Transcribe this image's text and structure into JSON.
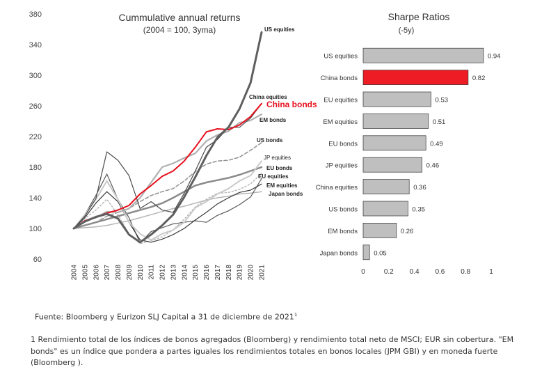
{
  "chart_data": [
    {
      "type": "line",
      "title": "Cummulative annual returns",
      "subtitle": "(2004 = 100, 3yma)",
      "xlabel": "",
      "ylabel": "",
      "ylim": [
        60,
        380
      ],
      "yticks": [
        60,
        100,
        140,
        180,
        220,
        260,
        300,
        340,
        380
      ],
      "x": [
        "2004",
        "2005",
        "2006",
        "2007",
        "2008",
        "2009",
        "2010",
        "2011",
        "2012",
        "2013",
        "2014",
        "2015",
        "2016",
        "2017",
        "2018",
        "2019",
        "2020",
        "2021"
      ],
      "series": [
        {
          "name": "US equities",
          "color": "#5f5f5f",
          "width": 3,
          "dash": "",
          "bold": true,
          "values": [
            100,
            109,
            115,
            119,
            113,
            92,
            82,
            92,
            104,
            118,
            141,
            167,
            195,
            219,
            232,
            256,
            290,
            356
          ]
        },
        {
          "name": "China equities",
          "color": "#4a4a4a",
          "width": 1.2,
          "dash": "",
          "bold": true,
          "values": [
            100,
            116,
            139,
            200,
            189,
            169,
            126,
            135,
            124,
            121,
            146,
            175,
            206,
            216,
            232,
            232,
            244,
            263
          ]
        },
        {
          "name": "China bonds",
          "color": "#e8101e",
          "width": 2,
          "dash": "",
          "bold": true,
          "values": [
            100,
            110,
            115,
            120,
            124,
            130,
            145,
            156,
            168,
            175,
            188,
            206,
            226,
            230,
            229,
            235,
            246,
            263
          ]
        },
        {
          "name": "EM bonds",
          "color": "#b0b0b0",
          "width": 2.2,
          "dash": "",
          "bold": true,
          "values": [
            100,
            110,
            114,
            122,
            121,
            126,
            140,
            160,
            180,
            185,
            192,
            198,
            214,
            222,
            227,
            238,
            241,
            249
          ]
        },
        {
          "name": "US bonds",
          "color": "#8f8f8f",
          "width": 1.5,
          "dash": "5 3",
          "bold": true,
          "values": [
            100,
            104,
            108,
            116,
            121,
            126,
            135,
            143,
            148,
            152,
            162,
            174,
            184,
            188,
            189,
            193,
            202,
            212
          ]
        },
        {
          "name": "JP equities",
          "color": "#c9c9c9",
          "width": 2,
          "dash": "",
          "bold": false,
          "values": [
            100,
            118,
            138,
            162,
            138,
            108,
            93,
            85,
            93,
            98,
            108,
            127,
            135,
            145,
            152,
            162,
            169,
            188
          ]
        },
        {
          "name": "EU bonds",
          "color": "#8a8a8a",
          "width": 2.5,
          "dash": "",
          "bold": true,
          "values": [
            100,
            104,
            108,
            112,
            116,
            120,
            124,
            128,
            133,
            140,
            148,
            156,
            160,
            163,
            166,
            170,
            175,
            180
          ]
        },
        {
          "name": "EU equities",
          "color": "#5a5a5a",
          "width": 1.2,
          "dash": "",
          "bold": true,
          "values": [
            100,
            118,
            143,
            171,
            138,
            114,
            81,
            96,
            101,
            106,
            108,
            110,
            108,
            117,
            123,
            131,
            141,
            165
          ]
        },
        {
          "name": "EM equities",
          "color": "#3a3a3a",
          "width": 1.2,
          "dash": "",
          "bold": true,
          "values": [
            100,
            114,
            133,
            148,
            135,
            108,
            85,
            82,
            86,
            92,
            100,
            111,
            121,
            132,
            140,
            147,
            150,
            158
          ]
        },
        {
          "name": "Japan bonds",
          "color": "#b5b5b5",
          "width": 1.5,
          "dash": "",
          "bold": true,
          "values": [
            100,
            101,
            102,
            104,
            107,
            110,
            114,
            118,
            122,
            126,
            129,
            133,
            137,
            140,
            142,
            145,
            146,
            148
          ]
        },
        {
          "name": "",
          "color": "#b8b8b8",
          "width": 1.5,
          "dash": "2 3",
          "bold": false,
          "values": [
            100,
            113,
            124,
            138,
            118,
            93,
            80,
            84,
            89,
            98,
            112,
            128,
            138,
            146,
            147,
            151,
            158,
            172
          ]
        }
      ]
    },
    {
      "type": "bar",
      "orientation": "horizontal",
      "title": "Sharpe Ratios",
      "subtitle": "(-5y)",
      "xlim": [
        0,
        1
      ],
      "xticks": [
        "0",
        "0.2",
        "0.4",
        "0.6",
        "0.8",
        "1"
      ],
      "categories": [
        "US equities",
        "China bonds",
        "EU equities",
        "EM equities",
        "EU bonds",
        "JP equities",
        "China equities",
        "US bonds",
        "EM bonds",
        "Japan bonds"
      ],
      "values": [
        0.94,
        0.82,
        0.53,
        0.51,
        0.49,
        0.46,
        0.36,
        0.35,
        0.26,
        0.05
      ],
      "bar_color": "#bfbfbf",
      "highlight": {
        "category": "China bonds",
        "color": "#ee1c25"
      }
    }
  ],
  "source": {
    "text": "Fuente: Bloomberg y Eurizon SLJ Capital a 31 de diciembre de 2021",
    "mark": "1"
  },
  "footnote": "1 Rendimiento total de los índices de bonos agregados (Bloomberg) y rendimiento total neto de MSCI; EUR sin cobertura.  \"EM bonds\" es un índice que pondera a partes iguales los rendimientos totales en bonos locales (JPM GBI) y en moneda fuerte (Bloomberg )."
}
